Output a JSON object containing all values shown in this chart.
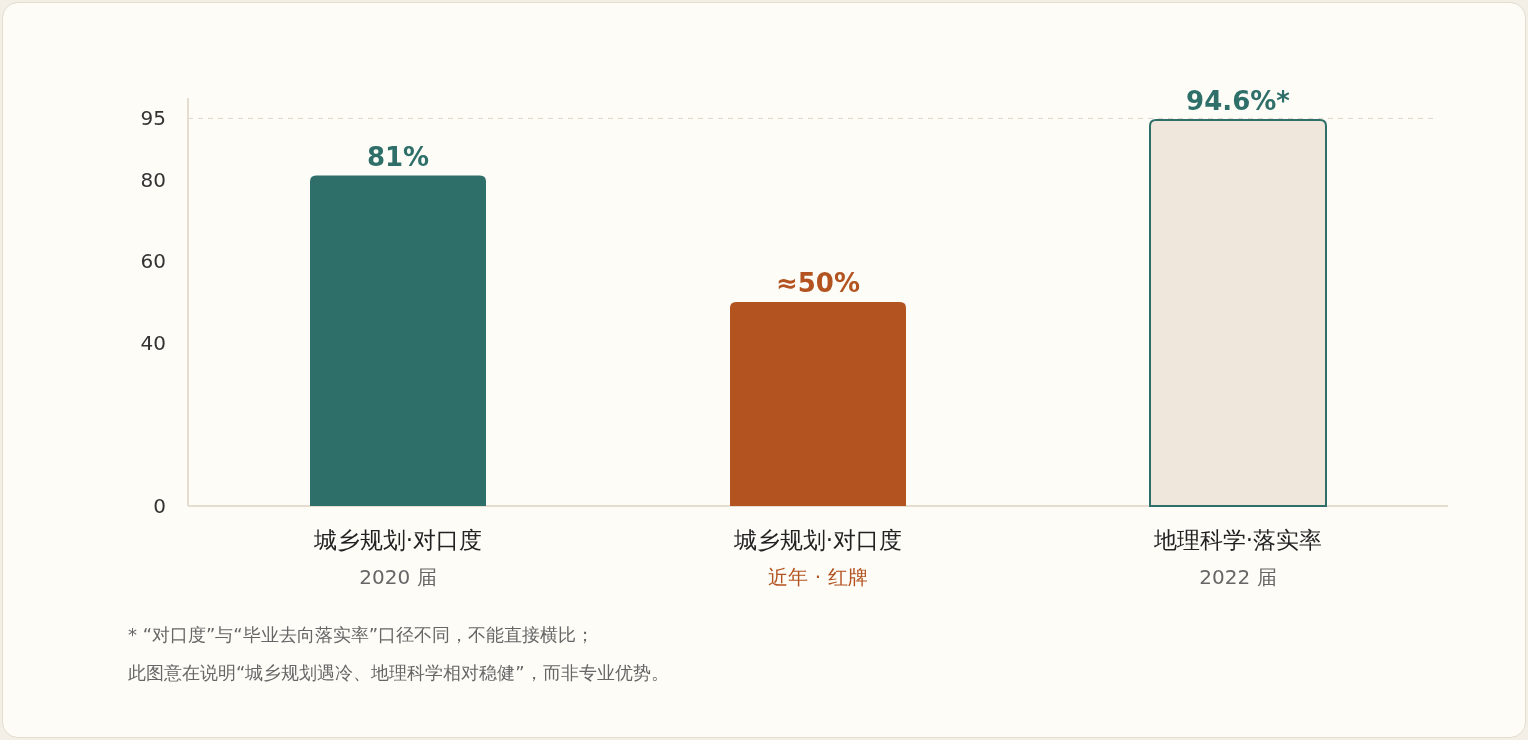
{
  "chart_data": {
    "type": "bar",
    "categories": [
      "城乡规划·对口度\n2020 届",
      "城乡规划·对口度近年 · 红牌",
      "地理科学·落实率\n2022 届"
    ],
    "values": [
      81,
      50,
      94.6
    ],
    "colors": [
      "#2f6f69",
      "#b3531f",
      "#efe7dc"
    ],
    "value_labels": [
      "81%",
      "≈50%",
      "94.6%*"
    ],
    "ylim": [
      0,
      100
    ],
    "yticks": [
      0,
      40,
      60,
      80,
      95
    ],
    "grid": false,
    "ref_lines": [
      {
        "axis": "y",
        "value": 95,
        "color": "#ddd5c8",
        "line_style": "dashed"
      }
    ],
    "annotations": [
      "* “对口度”与“毕业去向落实率”口径不同，不能直接横比；",
      "此图意在说明“城乡规划遇冷、地理科学相对稳健”，而非专业优势。"
    ]
  }
}
